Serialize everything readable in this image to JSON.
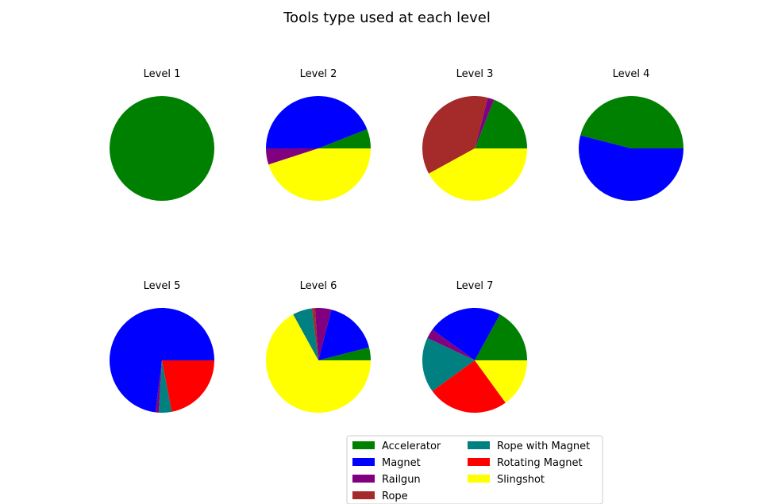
{
  "chart_data": {
    "type": "pie",
    "title": "Tools type used at each level",
    "legend_position": "bottom-center",
    "categories": [
      "Accelerator",
      "Magnet",
      "Railgun",
      "Rope",
      "Rope with Magnet",
      "Rotating Magnet",
      "Slingshot"
    ],
    "colors": {
      "Accelerator": "#008000",
      "Magnet": "#0000ff",
      "Railgun": "#800080",
      "Rope": "#a52a2a",
      "Rope with Magnet": "#008080",
      "Rotating Magnet": "#ff0000",
      "Slingshot": "#ffff00"
    },
    "levels": [
      {
        "name": "Level 1",
        "slices": [
          {
            "category": "Accelerator",
            "value": 1.0
          }
        ]
      },
      {
        "name": "Level 2",
        "slices": [
          {
            "category": "Accelerator",
            "value": 0.06
          },
          {
            "category": "Magnet",
            "value": 0.44
          },
          {
            "category": "Railgun",
            "value": 0.05
          },
          {
            "category": "Slingshot",
            "value": 0.45
          }
        ]
      },
      {
        "name": "Level 3",
        "slices": [
          {
            "category": "Accelerator",
            "value": 0.19
          },
          {
            "category": "Railgun",
            "value": 0.02
          },
          {
            "category": "Rope",
            "value": 0.37
          },
          {
            "category": "Slingshot",
            "value": 0.42
          }
        ]
      },
      {
        "name": "Level 4",
        "slices": [
          {
            "category": "Accelerator",
            "value": 0.46
          },
          {
            "category": "Magnet",
            "value": 0.54
          }
        ]
      },
      {
        "name": "Level 5",
        "slices": [
          {
            "category": "Magnet",
            "value": 0.73
          },
          {
            "category": "Railgun",
            "value": 0.01
          },
          {
            "category": "Rope with Magnet",
            "value": 0.04
          },
          {
            "category": "Rotating Magnet",
            "value": 0.22
          }
        ]
      },
      {
        "name": "Level 6",
        "slices": [
          {
            "category": "Accelerator",
            "value": 0.04
          },
          {
            "category": "Magnet",
            "value": 0.17
          },
          {
            "category": "Railgun",
            "value": 0.05
          },
          {
            "category": "Rope",
            "value": 0.01
          },
          {
            "category": "Rope with Magnet",
            "value": 0.06
          },
          {
            "category": "Slingshot",
            "value": 0.67
          }
        ]
      },
      {
        "name": "Level 7",
        "slices": [
          {
            "category": "Accelerator",
            "value": 0.17
          },
          {
            "category": "Magnet",
            "value": 0.23
          },
          {
            "category": "Railgun",
            "value": 0.03
          },
          {
            "category": "Rope with Magnet",
            "value": 0.17
          },
          {
            "category": "Rotating Magnet",
            "value": 0.25
          },
          {
            "category": "Slingshot",
            "value": 0.15
          }
        ]
      }
    ]
  }
}
